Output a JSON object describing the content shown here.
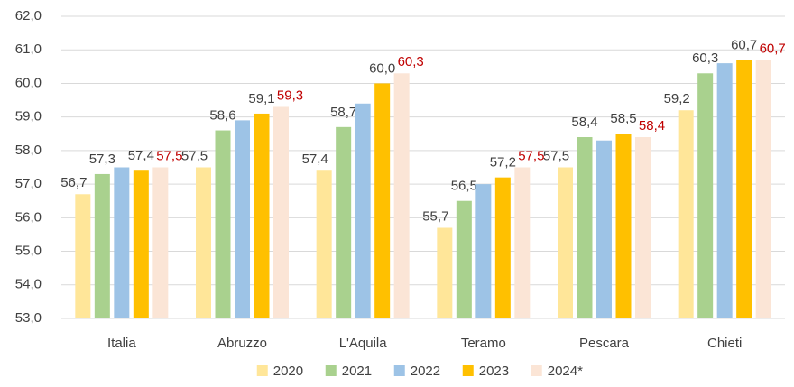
{
  "chart_data": {
    "type": "bar",
    "categories": [
      "Italia",
      "Abruzzo",
      "L'Aquila",
      "Teramo",
      "Pescara",
      "Chieti"
    ],
    "series": [
      {
        "name": "2020",
        "color": "#ffe699",
        "label_color": "#404040",
        "values": [
          56.7,
          57.5,
          57.4,
          55.7,
          57.5,
          59.2
        ],
        "value_labels": [
          "56,7",
          "57,5",
          "57,4",
          "55,7",
          "57,5",
          "59,2"
        ]
      },
      {
        "name": "2021",
        "color": "#a9d18e",
        "label_color": "#404040",
        "values": [
          57.3,
          58.6,
          58.7,
          56.5,
          58.4,
          60.3
        ],
        "value_labels": [
          "57,3",
          "58,6",
          "58,7",
          "56,5",
          "58,4",
          "60,3"
        ]
      },
      {
        "name": "2022",
        "color": "#9dc3e6",
        "values": [
          57.5,
          58.9,
          59.4,
          57.0,
          58.3,
          60.6
        ]
      },
      {
        "name": "2023",
        "color": "#ffc000",
        "label_color": "#404040",
        "values": [
          57.4,
          59.1,
          60.0,
          57.2,
          58.5,
          60.7
        ],
        "value_labels": [
          "57,4",
          "59,1",
          "60,0",
          "57,2",
          "58,5",
          "60,7"
        ]
      },
      {
        "name": "2024*",
        "color": "#fbe5d6",
        "label_color": "#c00000",
        "values": [
          57.5,
          59.3,
          60.3,
          57.5,
          58.4,
          60.7
        ],
        "value_labels": [
          "57,5",
          "59,3",
          "60,3",
          "57,5",
          "58,4",
          "60,7"
        ]
      }
    ],
    "ylim": [
      53,
      62
    ],
    "yticks": [
      {
        "value": 53,
        "label": "53,0"
      },
      {
        "value": 54,
        "label": "54,0"
      },
      {
        "value": 55,
        "label": "55,0"
      },
      {
        "value": 56,
        "label": "56,0"
      },
      {
        "value": 57,
        "label": "57,0"
      },
      {
        "value": 58,
        "label": "58,0"
      },
      {
        "value": 59,
        "label": "59,0"
      },
      {
        "value": 60,
        "label": "60,0"
      },
      {
        "value": 61,
        "label": "61,0"
      },
      {
        "value": 62,
        "label": "62,0"
      }
    ],
    "grid": true,
    "legend": "bottom"
  }
}
